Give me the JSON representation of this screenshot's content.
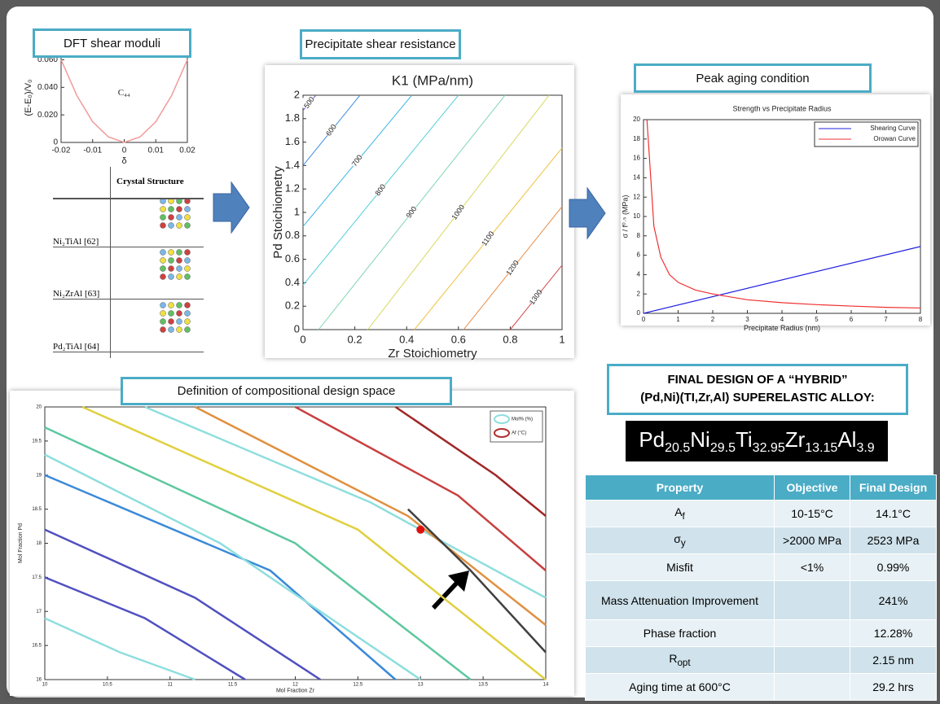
{
  "panels": {
    "dft": "DFT shear moduli",
    "shear": "Precipitate shear resistance",
    "aging": "Peak aging condition",
    "space": "Definition of compositional design space"
  },
  "chart_data": [
    {
      "type": "line",
      "ylabel": "(E-E₀)/V₀",
      "xlabel": "δ",
      "annotation": "C₄₄",
      "xlim": [
        -0.02,
        0.02
      ],
      "ylim": [
        0,
        0.065
      ],
      "xticks": [
        -0.02,
        -0.01,
        0,
        0.01,
        0.02
      ],
      "yticks": [
        0,
        {
          "value": 0.02,
          "label": "0.020"
        },
        {
          "value": 0.04,
          "label": "0.040"
        },
        {
          "value": 0.06,
          "label": "0.060"
        }
      ],
      "series": [
        {
          "color": "#f29a9a",
          "x": [
            -0.02,
            -0.015,
            -0.01,
            -0.005,
            0,
            0.005,
            0.01,
            0.015,
            0.02
          ],
          "values": [
            0.06,
            0.034,
            0.015,
            0.004,
            0,
            0.004,
            0.015,
            0.034,
            0.06
          ]
        }
      ]
    },
    {
      "type": "contour",
      "title": "K1 (MPa/nm)",
      "xlabel": "Zr Stoichiometry",
      "ylabel": "Pd Stoichiometry",
      "xlim": [
        0,
        1
      ],
      "ylim": [
        0,
        2
      ],
      "xticks": [
        0,
        0.2,
        0.4,
        0.6,
        0.8,
        1
      ],
      "yticks": [
        0,
        0.2,
        0.4,
        0.6,
        0.8,
        1,
        1.2,
        1.4,
        1.6,
        1.8,
        2
      ],
      "series": [
        {
          "label": 500,
          "color": "#5a5ad8",
          "x": [
            0,
            0.05
          ],
          "values": [
            1.87,
            2
          ]
        },
        {
          "label": 600,
          "color": "#3d8fe0",
          "x": [
            0,
            0.22
          ],
          "values": [
            1.4,
            2
          ]
        },
        {
          "label": 700,
          "color": "#3bb5e6",
          "x": [
            0,
            0.42
          ],
          "values": [
            0.88,
            2
          ]
        },
        {
          "label": 800,
          "color": "#52d0d8",
          "x": [
            0,
            0.6
          ],
          "values": [
            0.38,
            2
          ]
        },
        {
          "label": 900,
          "color": "#7fd6b0",
          "x": [
            0.06,
            0.78
          ],
          "values": [
            0,
            2
          ]
        },
        {
          "label": 1000,
          "color": "#d8d860",
          "x": [
            0.25,
            0.95
          ],
          "values": [
            0,
            2
          ]
        },
        {
          "label": 1100,
          "color": "#f0c040",
          "x": [
            0.43,
            1
          ],
          "values": [
            0,
            1.55
          ]
        },
        {
          "label": 1200,
          "color": "#e88a40",
          "x": [
            0.62,
            1
          ],
          "values": [
            0,
            1.05
          ]
        },
        {
          "label": 1300,
          "color": "#d04848",
          "x": [
            0.8,
            1
          ],
          "values": [
            0,
            0.55
          ]
        }
      ]
    },
    {
      "type": "line",
      "title": "Strength vs Precipitate Radius",
      "xlabel": "Precipitate Radius (nm)",
      "ylabel": "σ / f⁰·⁵ (MPa)",
      "xlim": [
        0,
        8
      ],
      "ylim": [
        0,
        20
      ],
      "xticks": [
        0,
        1,
        2,
        3,
        4,
        5,
        6,
        7,
        8
      ],
      "yticks": [
        0,
        2,
        4,
        6,
        8,
        10,
        12,
        14,
        16,
        18,
        20
      ],
      "legend": "upper right",
      "series": [
        {
          "name": "Shearing Curve",
          "color": "#2020e0",
          "x": [
            0,
            8
          ],
          "values": [
            0,
            6.9
          ]
        },
        {
          "name": "Orowan Curve",
          "color": "#f03030",
          "x": [
            0.1,
            0.3,
            0.5,
            0.75,
            1,
            1.5,
            2,
            3,
            4,
            5,
            6,
            7,
            8
          ],
          "values": [
            20,
            9,
            5.8,
            4,
            3.2,
            2.4,
            2,
            1.4,
            1.1,
            0.9,
            0.75,
            0.62,
            0.55
          ]
        }
      ]
    },
    {
      "type": "contour",
      "xlabel": "Mol Fraction Zr",
      "ylabel": "Mol Fraction Pd",
      "xlim": [
        10,
        14
      ],
      "ylim": [
        16,
        20
      ],
      "xticks": [
        10,
        10.5,
        11,
        11.5,
        12,
        12.5,
        13,
        13.5,
        14
      ],
      "yticks": [
        16,
        16.5,
        17,
        17.5,
        18,
        18.5,
        19,
        19.5,
        20
      ],
      "legend": [
        {
          "name": "Mol% (%)",
          "color": "#8fdede"
        },
        {
          "name": "Af (°C)",
          "color": "#b03030"
        }
      ],
      "markers": {
        "color": "#e01010",
        "x": [
          13
        ],
        "values": [
          18.2
        ]
      },
      "series": [
        {
          "color": "#5050c0",
          "x": [
            10,
            10.8,
            11.6
          ],
          "values": [
            17.5,
            16.9,
            16
          ]
        },
        {
          "color": "#5050c0",
          "x": [
            10,
            11.2,
            12.2
          ],
          "values": [
            18.2,
            17.2,
            16
          ]
        },
        {
          "color": "#3a8ad8",
          "x": [
            10,
            11.8,
            12.8
          ],
          "values": [
            19,
            17.6,
            16
          ]
        },
        {
          "color": "#8fdede",
          "x": [
            10,
            10.6,
            11.2
          ],
          "values": [
            16.9,
            16.4,
            16
          ]
        },
        {
          "color": "#8fdede",
          "x": [
            10,
            11.4,
            13
          ],
          "values": [
            19.3,
            18,
            16
          ]
        },
        {
          "color": "#5ec8a0",
          "x": [
            10,
            12,
            13.4
          ],
          "values": [
            19.7,
            18,
            16
          ]
        },
        {
          "color": "#e0d040",
          "x": [
            10.3,
            12.5,
            14
          ],
          "values": [
            20,
            18.2,
            16
          ]
        },
        {
          "color": "#8fdede",
          "x": [
            10.8,
            12.6,
            14
          ],
          "values": [
            20,
            18.6,
            17.2
          ]
        },
        {
          "color": "#e09040",
          "x": [
            11.2,
            12.9,
            14
          ],
          "values": [
            20,
            18.4,
            16.8
          ]
        },
        {
          "color": "#c84040",
          "x": [
            12,
            13.3,
            14
          ],
          "values": [
            20,
            18.7,
            17.6
          ]
        },
        {
          "color": "#a02828",
          "x": [
            12.8,
            13.6,
            14
          ],
          "values": [
            20,
            19,
            18.4
          ]
        },
        {
          "color": "#404040",
          "x": [
            12.9,
            13.4,
            14
          ],
          "values": [
            18.5,
            17.6,
            16.4
          ]
        }
      ]
    }
  ],
  "crystal_table": {
    "header": "Crystal Structure",
    "rows": [
      "Ni₂TiAl [62]",
      "Ni₂ZrAl [63]",
      "Pd₂TiAl [64]"
    ]
  },
  "final_design": {
    "heading": [
      "FINAL DESIGN OF A “HYBRID”",
      "(Pd,Ni)(TI,Zr,Al) SUPERELASTIC ALLOY:"
    ],
    "formula": [
      [
        "Pd",
        "20.5"
      ],
      [
        "Ni",
        "29.5"
      ],
      [
        "Ti",
        "32.95"
      ],
      [
        "Zr",
        "13.15"
      ],
      [
        "Al",
        "3.9"
      ]
    ]
  },
  "table": {
    "header": [
      "Property",
      "Objective",
      "Final Design"
    ],
    "rows": [
      [
        [
          "A",
          "f"
        ],
        "10-15°C",
        "14.1°C"
      ],
      [
        [
          "σ",
          "y"
        ],
        ">2000 MPa",
        "2523 MPa"
      ],
      [
        "Misfit",
        "<1%",
        "0.99%"
      ],
      [
        "Mass Attenuation Improvement",
        null,
        "241%"
      ],
      [
        "Phase fraction",
        null,
        "12.28%"
      ],
      [
        [
          "R",
          "opt"
        ],
        null,
        "2.15 nm"
      ],
      [
        "Aging time at 600°C",
        null,
        "29.2 hrs"
      ]
    ]
  }
}
